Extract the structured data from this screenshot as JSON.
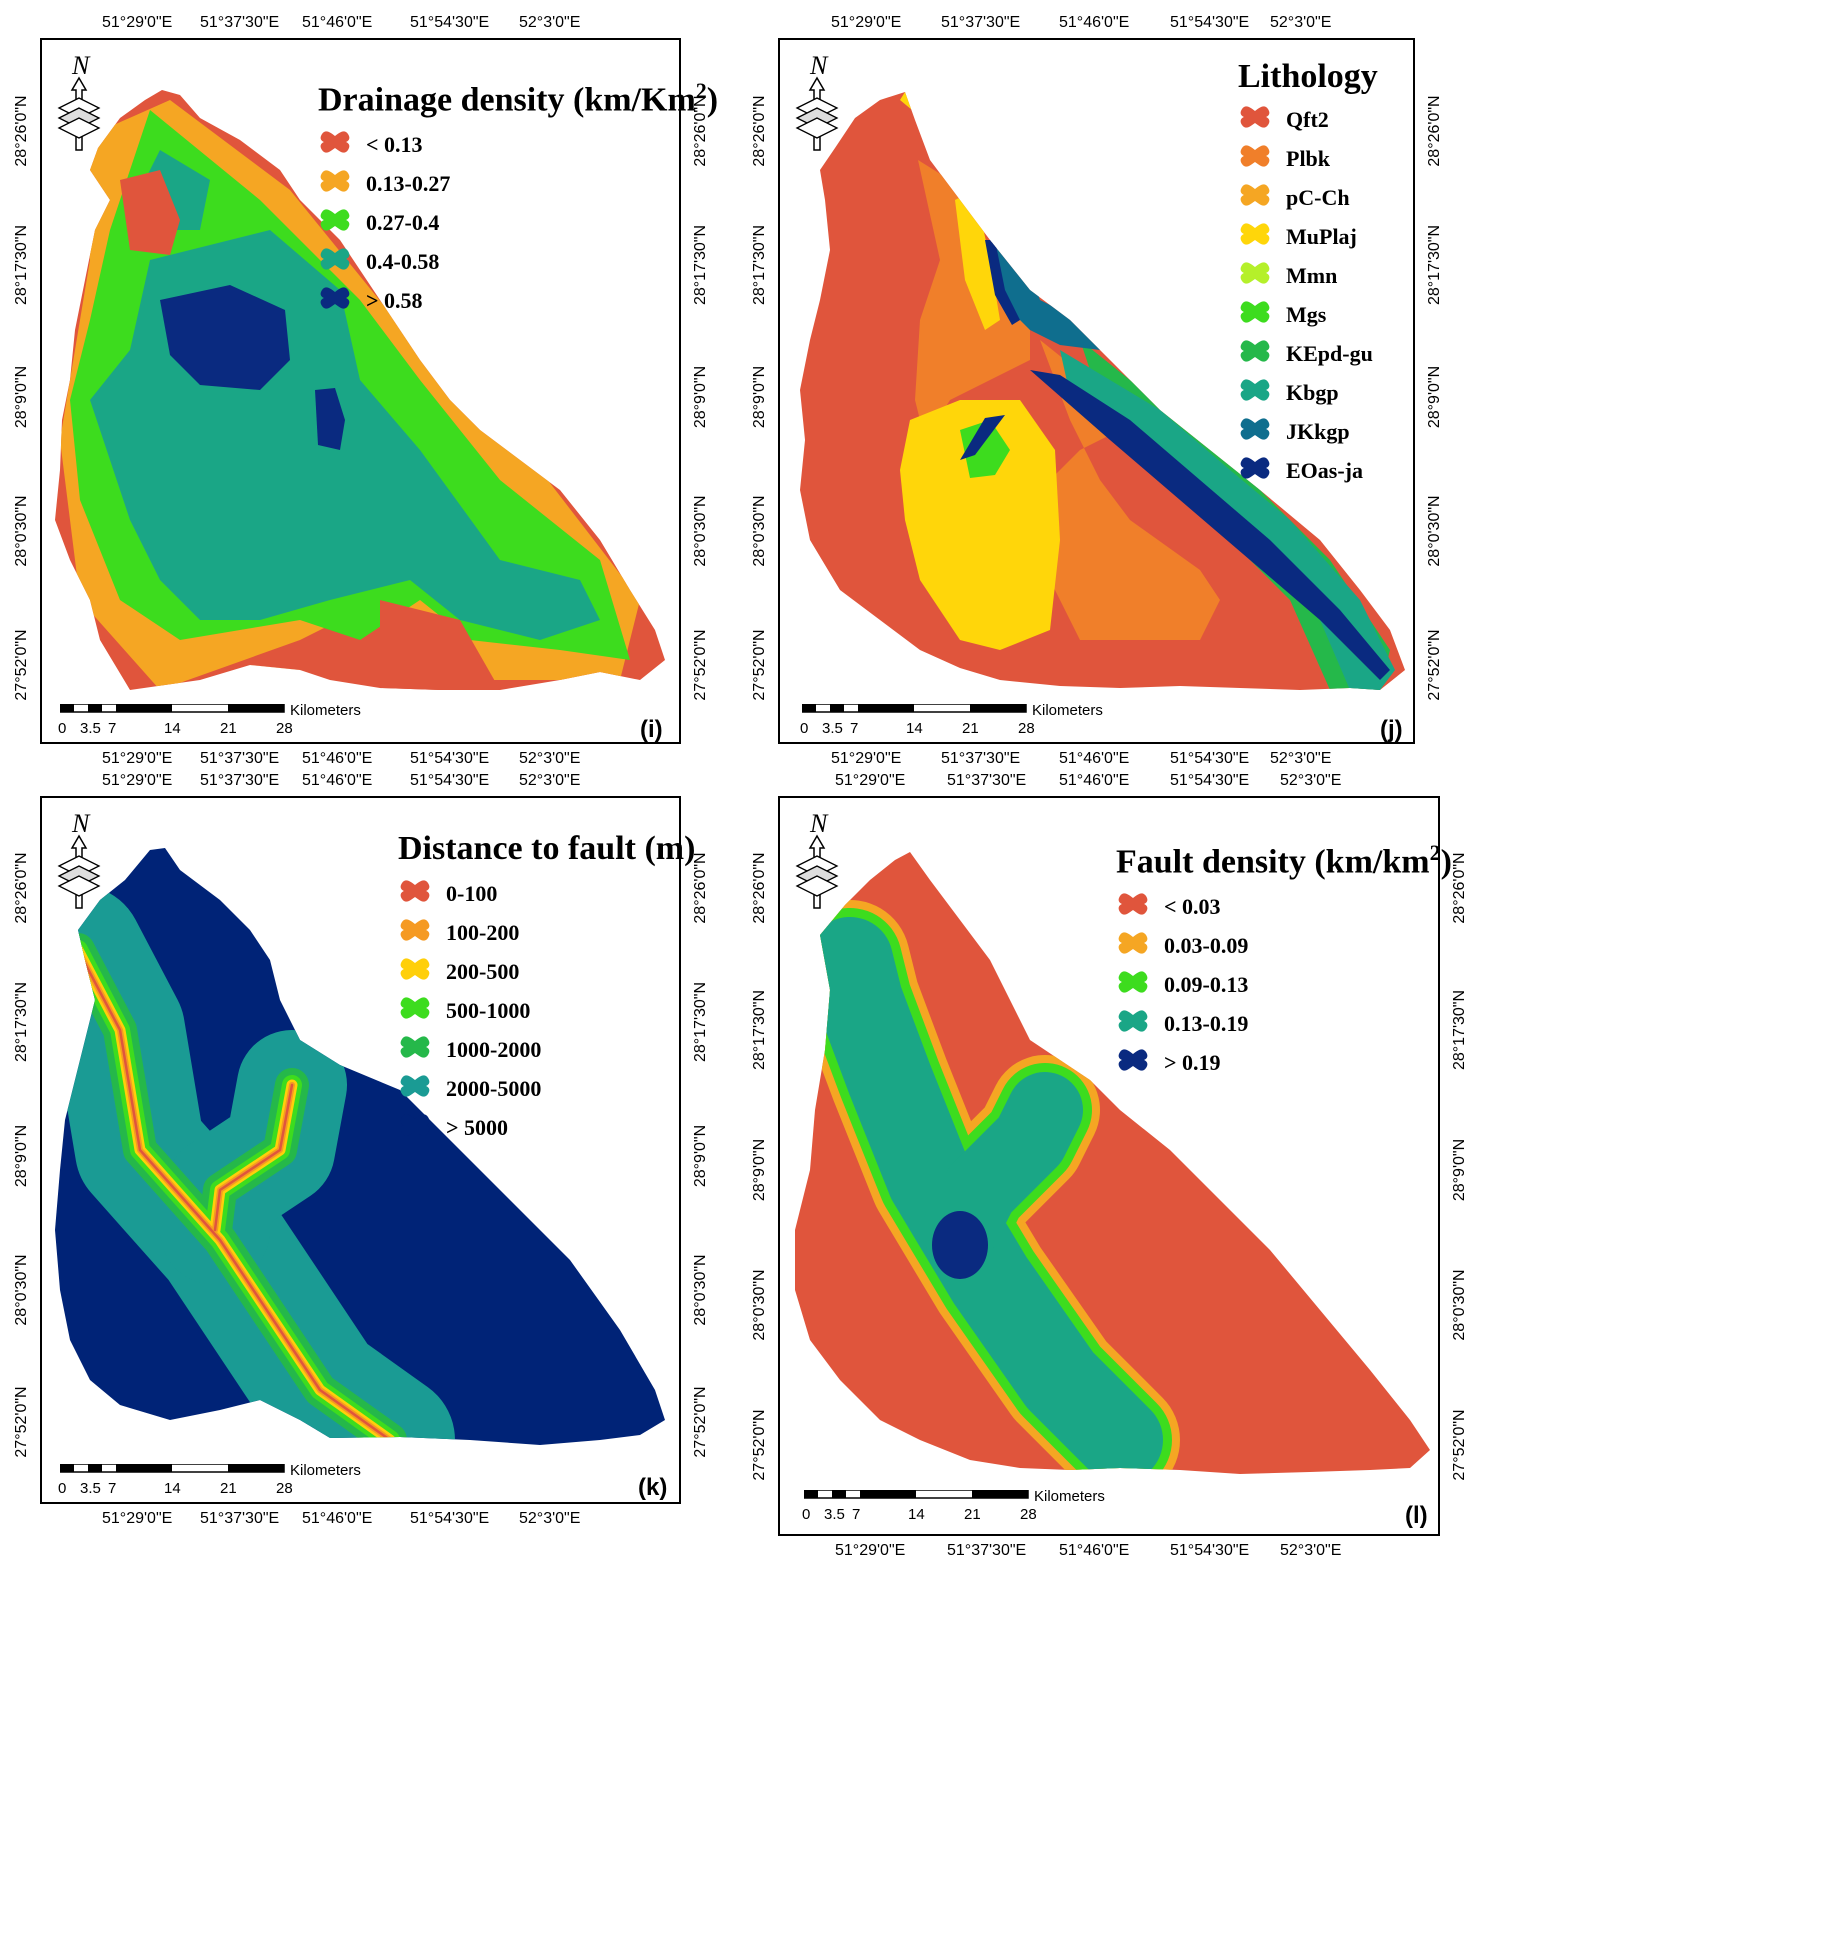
{
  "panels": [
    {
      "key": "i",
      "label": "(i)",
      "title": "Drainage density (km/Km",
      "title_sup": "2",
      "title_close": ")",
      "legend": [
        {
          "label": "< 0.13",
          "color": "#e0553c"
        },
        {
          "label": "0.13-0.27",
          "color": "#f5a623"
        },
        {
          "label": "0.27-0.4",
          "color": "#3ddc1e"
        },
        {
          "label": "0.4-0.58",
          "color": "#1aa686"
        },
        {
          "label": "> 0.58",
          "color": "#0a2a80"
        }
      ]
    },
    {
      "key": "j",
      "label": "(j)",
      "title": "Lithology",
      "title_sup": "",
      "title_close": "",
      "legend": [
        {
          "label": "Qft2",
          "color": "#e0553c"
        },
        {
          "label": "Plbk",
          "color": "#f07f2a"
        },
        {
          "label": "pC-Ch",
          "color": "#f5a623"
        },
        {
          "label": "MuPlaj",
          "color": "#ffd60a"
        },
        {
          "label": "Mmn",
          "color": "#b5f02a"
        },
        {
          "label": "Mgs",
          "color": "#3ddc1e"
        },
        {
          "label": "KEpd-gu",
          "color": "#25b84a"
        },
        {
          "label": "Kbgp",
          "color": "#1aa686"
        },
        {
          "label": "JKkgp",
          "color": "#0f6e8e"
        },
        {
          "label": "EOas-ja",
          "color": "#0a2a80"
        }
      ]
    },
    {
      "key": "k",
      "label": "(k)",
      "title": "Distance to fault (m)",
      "title_sup": "",
      "title_close": "",
      "legend": [
        {
          "label": "0-100",
          "color": "#e0553c"
        },
        {
          "label": "100-200",
          "color": "#f59a23"
        },
        {
          "label": "200-500",
          "color": "#ffcf0a"
        },
        {
          "label": "500-1000",
          "color": "#3ddc1e"
        },
        {
          "label": "1000-2000",
          "color": "#25b84a"
        },
        {
          "label": "2000-5000",
          "color": "#1a9b94"
        },
        {
          "label": "> 5000",
          "color": "#002377"
        }
      ]
    },
    {
      "key": "l",
      "label": "(l)",
      "title": "Fault density (km/km",
      "title_sup": "2",
      "title_close": ")",
      "legend": [
        {
          "label": "< 0.03",
          "color": "#e0553c"
        },
        {
          "label": "0.03-0.09",
          "color": "#f5a623"
        },
        {
          "label": "0.09-0.13",
          "color": "#3ddc1e"
        },
        {
          "label": "0.13-0.19",
          "color": "#1aa686"
        },
        {
          "label": "> 0.19",
          "color": "#0a2a80"
        }
      ]
    }
  ],
  "lon_labels": [
    "51°29'0\"E",
    "51°37'30\"E",
    "51°46'0\"E",
    "51°54'30\"E",
    "52°3'0\"E"
  ],
  "lat_labels": [
    "28°26'0\"N",
    "28°17'30\"N",
    "28°9'0\"N",
    "28°0'30\"N",
    "27°52'0\"N"
  ],
  "scale": {
    "ticks": [
      "0",
      "3.5",
      "7",
      "14",
      "21",
      "28"
    ],
    "unit": "Kilometers"
  },
  "north_letter": "N"
}
